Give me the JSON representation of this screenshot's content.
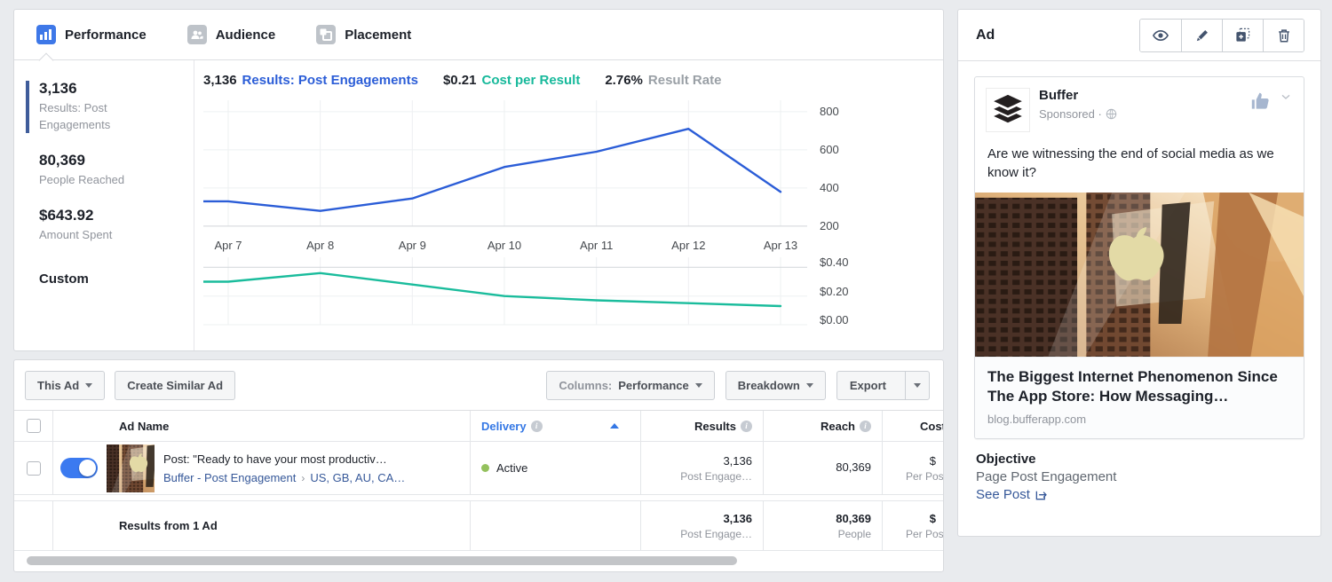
{
  "tabs": [
    {
      "label": "Performance",
      "active": true
    },
    {
      "label": "Audience",
      "active": false
    },
    {
      "label": "Placement",
      "active": false
    }
  ],
  "stats": {
    "items": [
      {
        "value": "3,136",
        "label": "Results: Post Engagements",
        "highlighted": true
      },
      {
        "value": "80,369",
        "label": "People Reached",
        "highlighted": false
      },
      {
        "value": "$643.92",
        "label": "Amount Spent",
        "highlighted": false
      }
    ],
    "custom_label": "Custom"
  },
  "chart_header": [
    {
      "value": "3,136",
      "label": "Results: Post Engagements"
    },
    {
      "value": "$0.21",
      "label": "Cost per Result"
    },
    {
      "value": "2.76%",
      "label": "Result Rate"
    }
  ],
  "chart_data": {
    "type": "line",
    "x": [
      "Apr 7",
      "Apr 8",
      "Apr 9",
      "Apr 10",
      "Apr 11",
      "Apr 12",
      "Apr 13"
    ],
    "grid": true,
    "legend": "none",
    "series": [
      {
        "name": "Results: Post Engagements",
        "color": "#2b5dd7",
        "values": [
          330,
          280,
          345,
          510,
          590,
          710,
          380
        ],
        "ylim": [
          190,
          860
        ],
        "yticks": [
          {
            "v": 800,
            "label": "800"
          },
          {
            "v": 600,
            "label": "600"
          },
          {
            "v": 400,
            "label": "400"
          },
          {
            "v": 200,
            "label": "200"
          }
        ],
        "axis_tick_index": 3
      },
      {
        "name": "Cost per Result",
        "color": "#1abc9c",
        "values": [
          0.3,
          0.36,
          0.28,
          0.2,
          0.17,
          0.15,
          0.13
        ],
        "ylim": [
          0,
          0.47
        ],
        "yticks": [
          {
            "v": 0.4,
            "label": "$0.40"
          },
          {
            "v": 0.2,
            "label": "$0.20"
          },
          {
            "v": 0.0,
            "label": "$0.00"
          }
        ],
        "axis_tick_index": 0
      }
    ]
  },
  "toolbar": {
    "this_ad": "This Ad",
    "create_similar": "Create Similar Ad",
    "columns_prefix": "Columns:",
    "columns_value": "Performance",
    "breakdown": "Breakdown",
    "export": "Export"
  },
  "table": {
    "headers": {
      "ad_name": "Ad Name",
      "delivery": "Delivery",
      "results": "Results",
      "reach": "Reach",
      "cost": "Cost"
    },
    "row": {
      "name": "Post: \"Ready to have your most productiv…",
      "campaign": "Buffer - Post Engagement",
      "targeting": "US, GB, AU, CA…",
      "delivery": "Active",
      "results": "3,136",
      "results_sub": "Post Engage…",
      "reach": "80,369",
      "cost": "$",
      "cost_sub": "Per Post"
    },
    "summary": {
      "label": "Results from 1 Ad",
      "results": "3,136",
      "results_sub": "Post Engage…",
      "reach": "80,369",
      "reach_sub": "People",
      "cost": "$",
      "cost_sub": "Per Post"
    }
  },
  "ad_panel": {
    "title": "Ad",
    "page_name": "Buffer",
    "sponsored": "Sponsored · ",
    "post_text": "Are we witnessing the end of social media as we know it?",
    "headline": "The Biggest Internet Phenomenon Since The App Store: How Messaging…",
    "link_domain": "blog.bufferapp.com",
    "objective_label": "Objective",
    "objective_value": "Page Post Engagement",
    "see_post": "See Post"
  },
  "colors": {
    "accent_blue": "#2b5dd7",
    "accent_teal": "#1abc9c",
    "link_blue": "#365899",
    "active_green": "#94c15d"
  }
}
